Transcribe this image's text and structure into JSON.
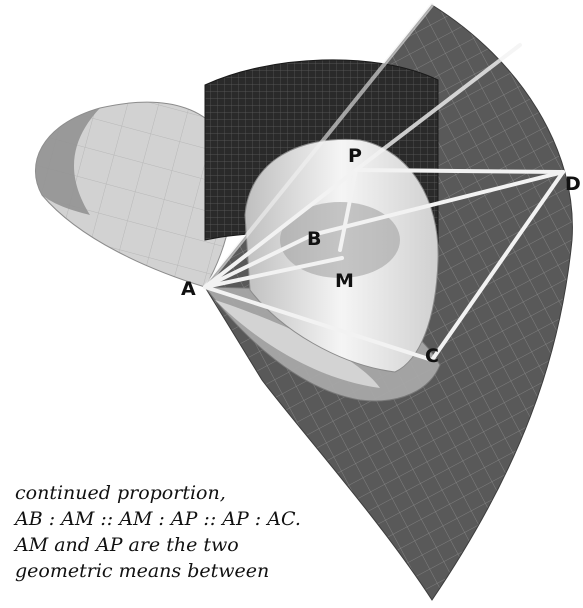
{
  "points": {
    "A": "A",
    "B": "B",
    "M": "M",
    "P": "P",
    "C": "C",
    "D": "D"
  },
  "caption": {
    "line1": "continued proportion,",
    "line2": "AB : AM :: AM : AP :: AP : AC.",
    "line3": "AM and AP are the two",
    "line4": "geometric means between"
  },
  "colors": {
    "cone_surface": "#5a5a5a",
    "cylinder_surface": "#2c2c2c",
    "torus_light": "#dcdcdc",
    "torus_mid": "#bdbdbd",
    "lines": "#f2f2f2"
  }
}
